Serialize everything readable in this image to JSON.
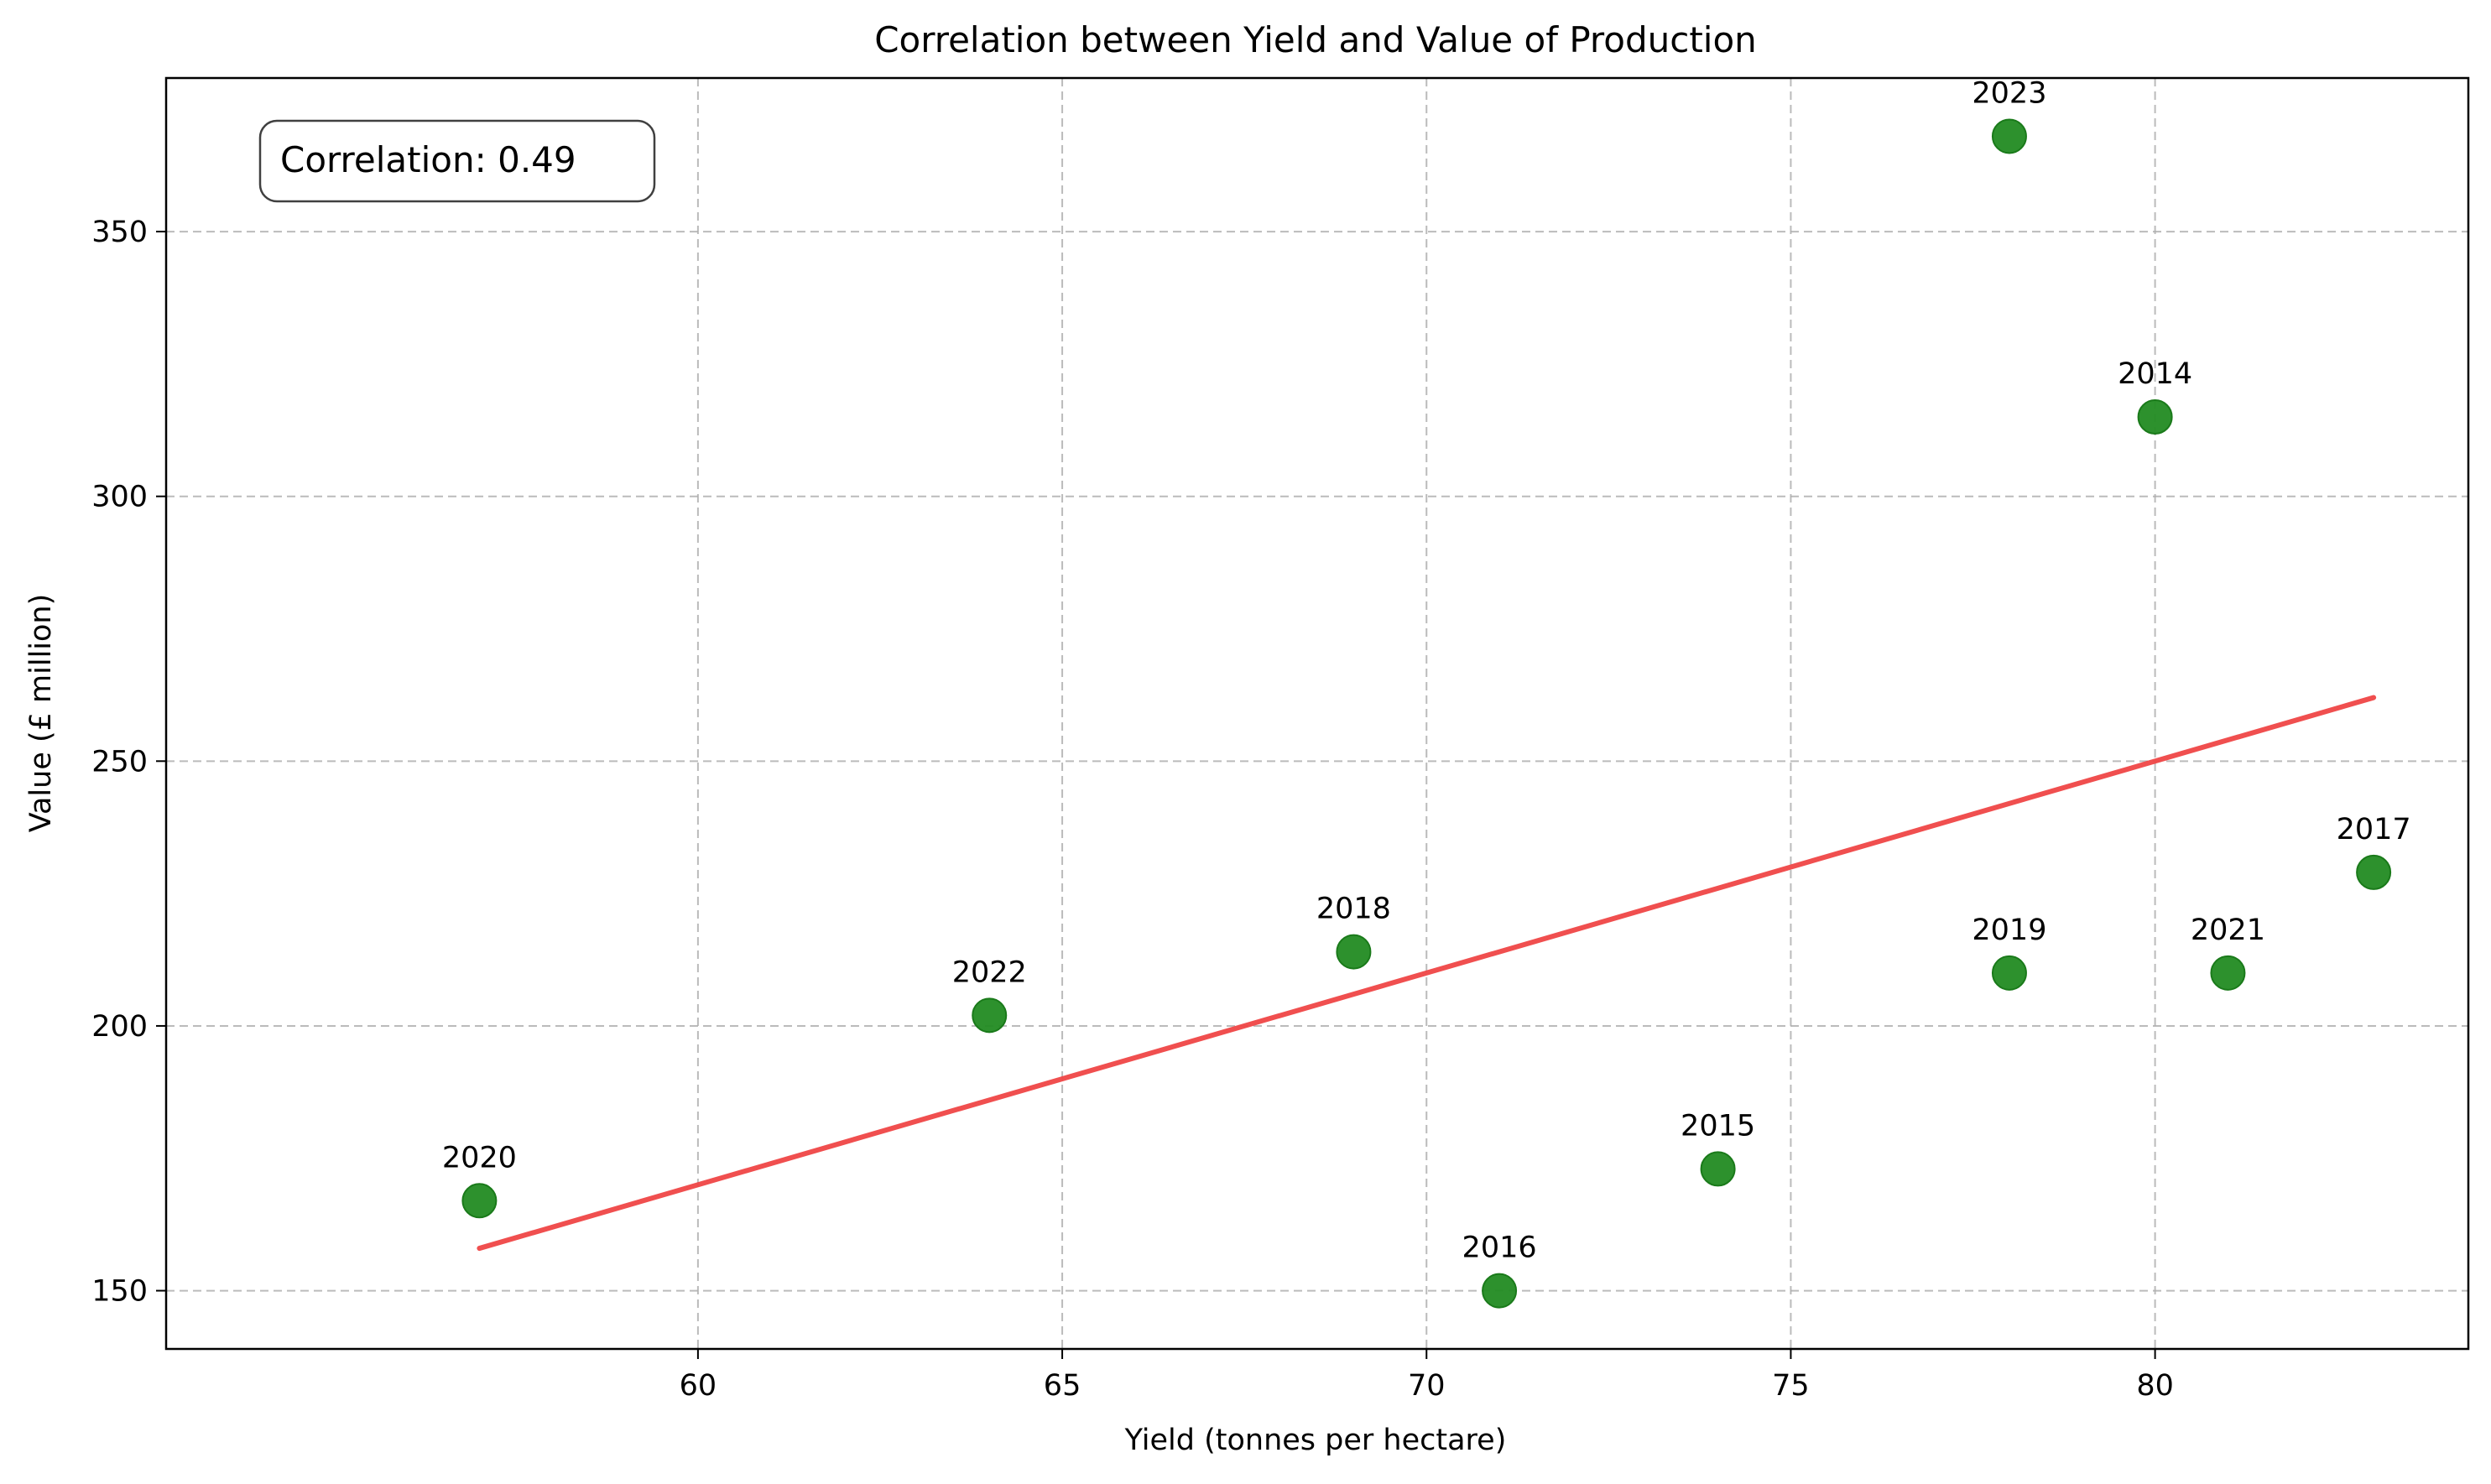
{
  "chart_data": {
    "type": "scatter",
    "title": "Correlation between Yield and Value of Production",
    "xlabel": "Yield (tonnes per hectare)",
    "ylabel": "Value (£ million)",
    "xlim": [
      52.7,
      84.3
    ],
    "ylim": [
      139,
      379
    ],
    "xticks": [
      60,
      65,
      70,
      75,
      80
    ],
    "yticks": [
      150,
      200,
      250,
      300,
      350
    ],
    "grid": true,
    "points": [
      {
        "label": "2014",
        "x": 80,
        "y": 315
      },
      {
        "label": "2015",
        "x": 74,
        "y": 173
      },
      {
        "label": "2016",
        "x": 71,
        "y": 150
      },
      {
        "label": "2017",
        "x": 83,
        "y": 229
      },
      {
        "label": "2018",
        "x": 69,
        "y": 214
      },
      {
        "label": "2019",
        "x": 78,
        "y": 210
      },
      {
        "label": "2020",
        "x": 57,
        "y": 167
      },
      {
        "label": "2021",
        "x": 81,
        "y": 210
      },
      {
        "label": "2022",
        "x": 64,
        "y": 202
      },
      {
        "label": "2023",
        "x": 78,
        "y": 368
      }
    ],
    "trendline": {
      "x": [
        57,
        83
      ],
      "y": [
        158,
        262
      ]
    },
    "annotation": "Correlation: 0.49",
    "colors": {
      "points": "#228B22",
      "trendline": "#f04646",
      "grid": "#b0b0b0"
    }
  }
}
